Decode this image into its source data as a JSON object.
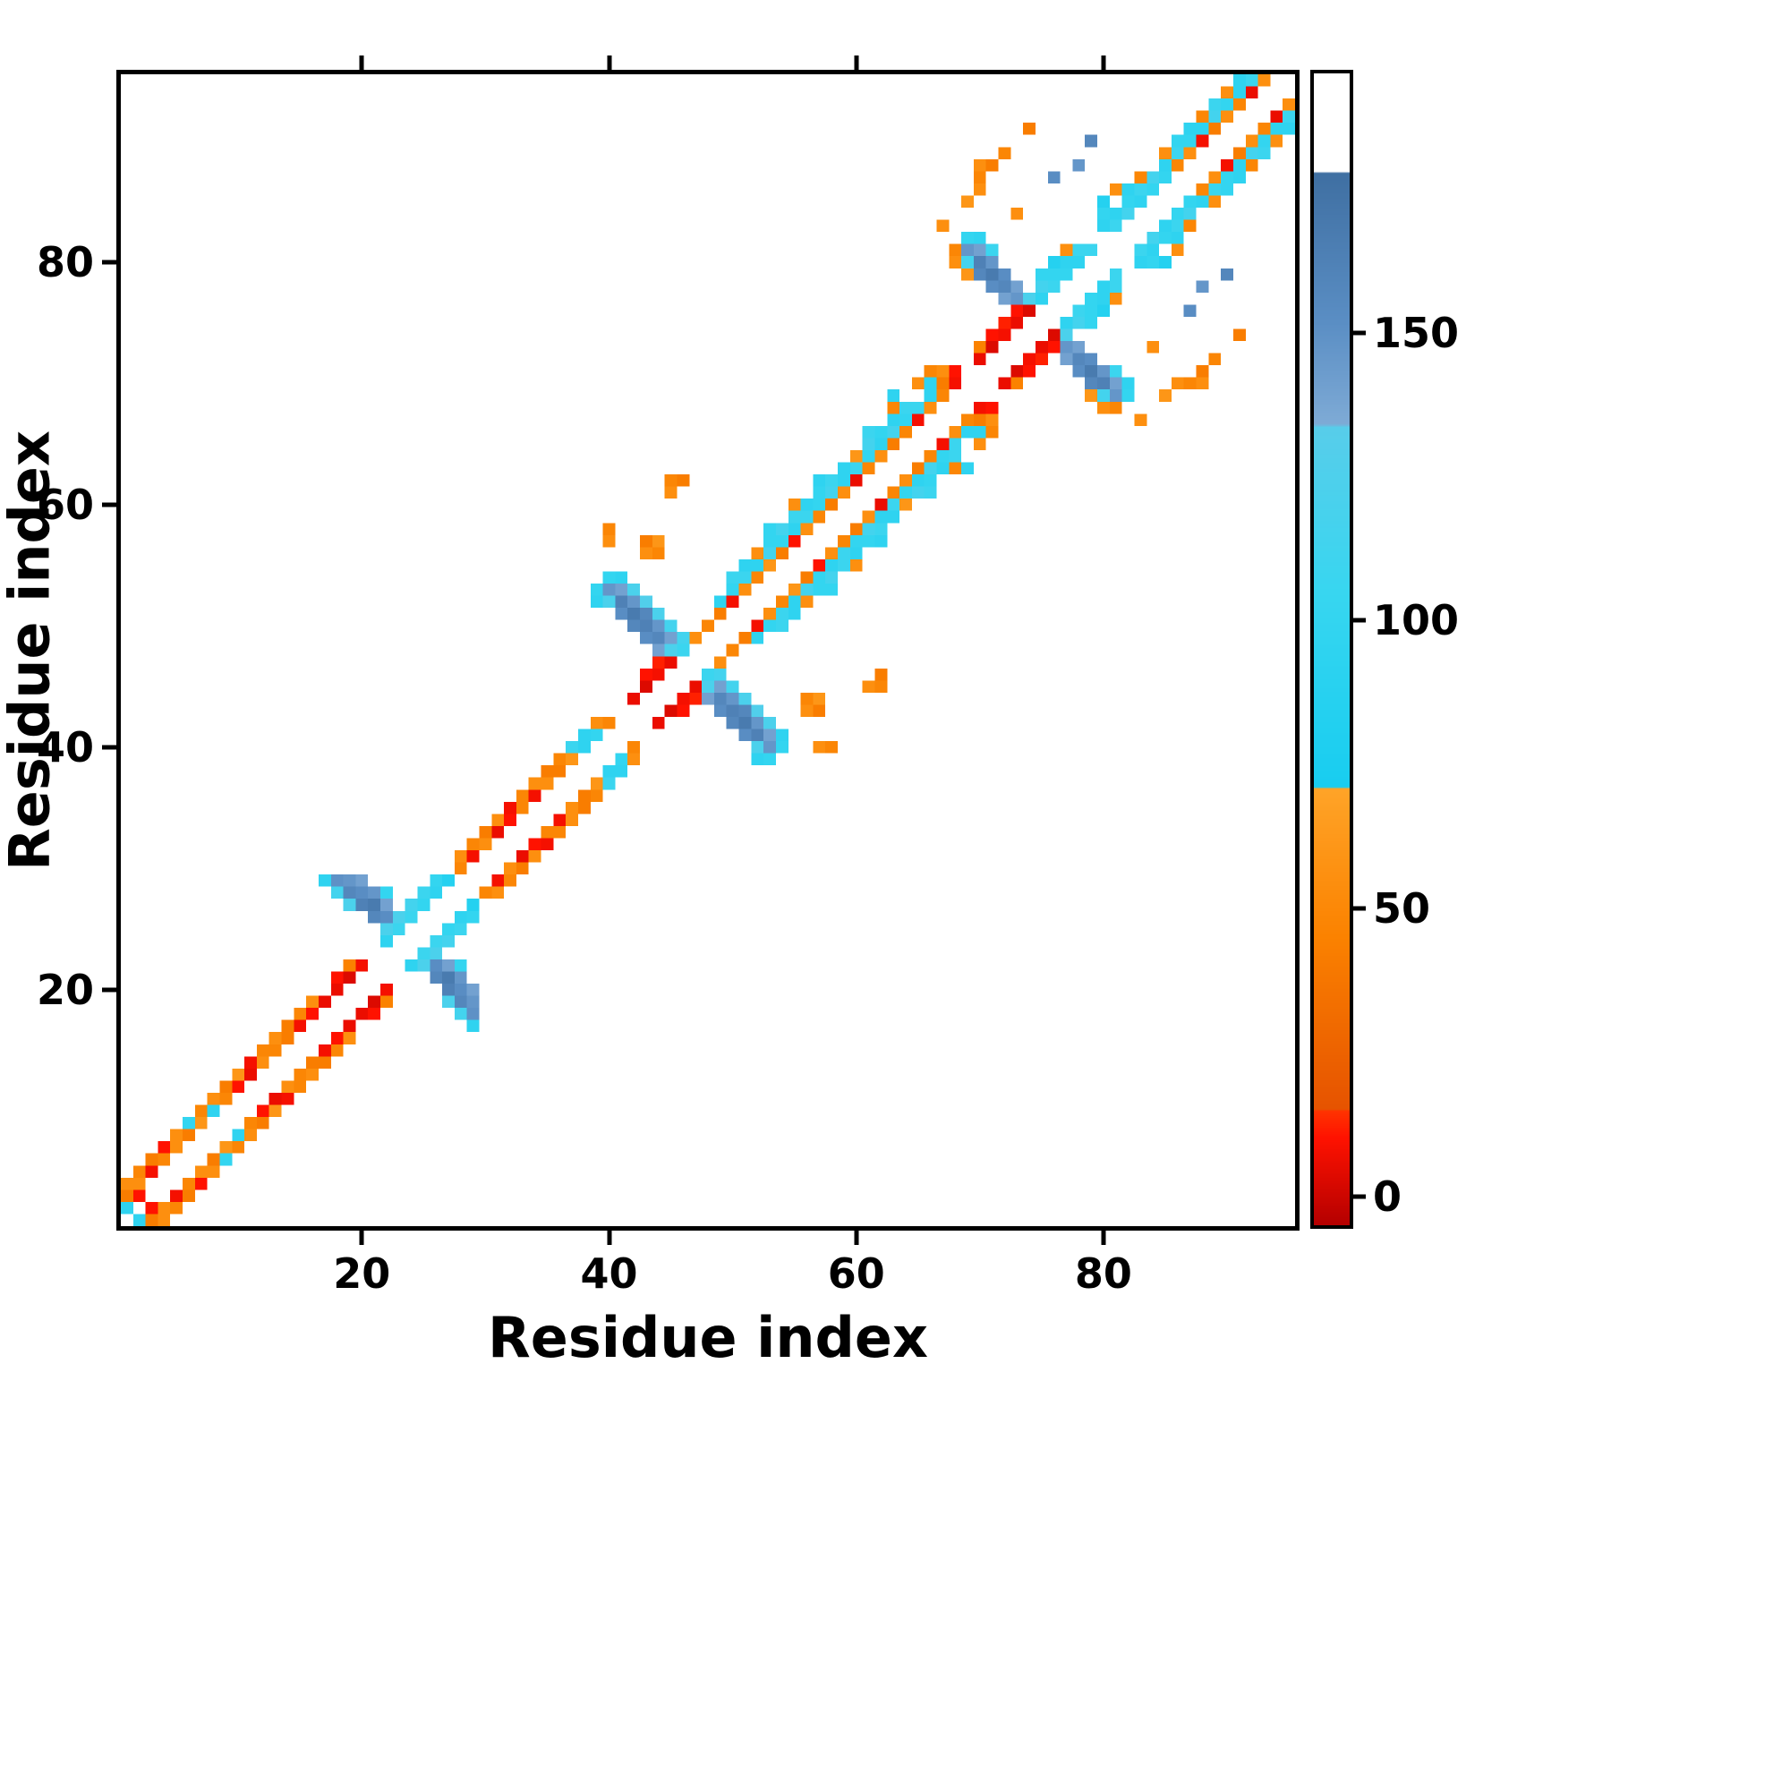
{
  "figure": {
    "background": "#ffffff",
    "axis_color": "#000000"
  },
  "chart_data": {
    "type": "heatmap",
    "title": "",
    "xlabel": "Residue index",
    "ylabel": "Residue index",
    "n_residues": 95,
    "axis_range": [
      0.5,
      95.5
    ],
    "x_ticks": [
      20,
      40,
      60,
      80
    ],
    "y_ticks": [
      20,
      40,
      60,
      80
    ],
    "grid": false,
    "symmetric": true,
    "colorbar": {
      "vmin": -5,
      "vmax": 195,
      "ticks": [
        0,
        50,
        100,
        150
      ]
    },
    "colormap_stops": [
      {
        "v": -5,
        "c": "#b50000"
      },
      {
        "v": 10,
        "c": "#ff1200"
      },
      {
        "v": 14.9,
        "c": "#ff3500"
      },
      {
        "v": 15,
        "c": "#e65300"
      },
      {
        "v": 45,
        "c": "#fb8200"
      },
      {
        "v": 70.9,
        "c": "#ffa428"
      },
      {
        "v": 71,
        "c": "#18cdf0"
      },
      {
        "v": 105,
        "c": "#38d6f0"
      },
      {
        "v": 133.9,
        "c": "#58cdea"
      },
      {
        "v": 134,
        "c": "#7fabd6"
      },
      {
        "v": 152,
        "c": "#5a8ec4"
      },
      {
        "v": 177.9,
        "c": "#3f6fa2"
      },
      {
        "v": 178,
        "c": "#ffffff"
      },
      {
        "v": 195,
        "c": "#ffffff"
      }
    ],
    "cells": [
      [
        1,
        2,
        95
      ],
      [
        2,
        3,
        10
      ],
      [
        1,
        3,
        42
      ],
      [
        2,
        4,
        55
      ],
      [
        3,
        5,
        8
      ],
      [
        4,
        6,
        48
      ],
      [
        5,
        7,
        55
      ],
      [
        6,
        8,
        42
      ],
      [
        7,
        9,
        60
      ],
      [
        8,
        10,
        95
      ],
      [
        9,
        11,
        48
      ],
      [
        10,
        12,
        10
      ],
      [
        11,
        13,
        6
      ],
      [
        12,
        14,
        55
      ],
      [
        13,
        15,
        48
      ],
      [
        14,
        16,
        42
      ],
      [
        15,
        17,
        8
      ],
      [
        16,
        18,
        10
      ],
      [
        17,
        19,
        6
      ],
      [
        1,
        4,
        55
      ],
      [
        2,
        5,
        48
      ],
      [
        3,
        6,
        42
      ],
      [
        4,
        7,
        10
      ],
      [
        5,
        8,
        55
      ],
      [
        6,
        9,
        100
      ],
      [
        7,
        10,
        48
      ],
      [
        8,
        11,
        55
      ],
      [
        9,
        12,
        42
      ],
      [
        10,
        13,
        60
      ],
      [
        11,
        14,
        8
      ],
      [
        12,
        15,
        48
      ],
      [
        13,
        16,
        55
      ],
      [
        14,
        17,
        42
      ],
      [
        15,
        18,
        48
      ],
      [
        16,
        19,
        55
      ],
      [
        18,
        20,
        6
      ],
      [
        18,
        21,
        10
      ],
      [
        19,
        21,
        3
      ],
      [
        19,
        22,
        45
      ],
      [
        20,
        22,
        8
      ],
      [
        17,
        29,
        95
      ],
      [
        18,
        28,
        115
      ],
      [
        18,
        29,
        150
      ],
      [
        19,
        27,
        122
      ],
      [
        19,
        28,
        158
      ],
      [
        19,
        29,
        147
      ],
      [
        20,
        27,
        163
      ],
      [
        20,
        28,
        153
      ],
      [
        20,
        29,
        140
      ],
      [
        21,
        26,
        158
      ],
      [
        21,
        27,
        168
      ],
      [
        21,
        28,
        147
      ],
      [
        22,
        25,
        122
      ],
      [
        22,
        26,
        153
      ],
      [
        22,
        27,
        140
      ],
      [
        22,
        28,
        100
      ],
      [
        23,
        25,
        108
      ],
      [
        23,
        26,
        122
      ],
      [
        22,
        24,
        95
      ],
      [
        24,
        26,
        108
      ],
      [
        25,
        27,
        100
      ],
      [
        26,
        28,
        95
      ],
      [
        24,
        27,
        115
      ],
      [
        25,
        28,
        108
      ],
      [
        26,
        29,
        100
      ],
      [
        27,
        29,
        85
      ],
      [
        28,
        30,
        48
      ],
      [
        29,
        31,
        8
      ],
      [
        30,
        32,
        55
      ],
      [
        31,
        33,
        6
      ],
      [
        32,
        34,
        10
      ],
      [
        33,
        35,
        48
      ],
      [
        34,
        36,
        8
      ],
      [
        35,
        37,
        55
      ],
      [
        36,
        38,
        42
      ],
      [
        37,
        39,
        60
      ],
      [
        38,
        40,
        95
      ],
      [
        39,
        41,
        100
      ],
      [
        40,
        42,
        48
      ],
      [
        28,
        31,
        55
      ],
      [
        29,
        32,
        48
      ],
      [
        30,
        33,
        42
      ],
      [
        31,
        34,
        55
      ],
      [
        32,
        35,
        8
      ],
      [
        33,
        36,
        48
      ],
      [
        34,
        37,
        55
      ],
      [
        35,
        38,
        42
      ],
      [
        36,
        39,
        48
      ],
      [
        37,
        40,
        108
      ],
      [
        38,
        41,
        95
      ],
      [
        39,
        42,
        55
      ],
      [
        42,
        44,
        6
      ],
      [
        43,
        45,
        3
      ],
      [
        44,
        46,
        8
      ],
      [
        43,
        46,
        10
      ],
      [
        45,
        47,
        6
      ],
      [
        44,
        47,
        12
      ],
      [
        39,
        52,
        95
      ],
      [
        39,
        53,
        100
      ],
      [
        40,
        52,
        122
      ],
      [
        40,
        53,
        147
      ],
      [
        40,
        54,
        100
      ],
      [
        41,
        51,
        153
      ],
      [
        41,
        52,
        163
      ],
      [
        41,
        53,
        140
      ],
      [
        41,
        54,
        95
      ],
      [
        42,
        50,
        158
      ],
      [
        42,
        51,
        168
      ],
      [
        42,
        52,
        147
      ],
      [
        42,
        53,
        122
      ],
      [
        43,
        49,
        153
      ],
      [
        43,
        50,
        163
      ],
      [
        43,
        51,
        158
      ],
      [
        43,
        52,
        128
      ],
      [
        44,
        48,
        140
      ],
      [
        44,
        49,
        158
      ],
      [
        44,
        50,
        147
      ],
      [
        44,
        51,
        122
      ],
      [
        45,
        48,
        122
      ],
      [
        45,
        49,
        140
      ],
      [
        45,
        50,
        115
      ],
      [
        46,
        48,
        108
      ],
      [
        46,
        49,
        115
      ],
      [
        40,
        57,
        55
      ],
      [
        40,
        58,
        48
      ],
      [
        43,
        56,
        55
      ],
      [
        44,
        56,
        48
      ],
      [
        44,
        57,
        60
      ],
      [
        43,
        57,
        42
      ],
      [
        45,
        61,
        55
      ],
      [
        45,
        62,
        48
      ],
      [
        46,
        62,
        42
      ],
      [
        47,
        49,
        55
      ],
      [
        48,
        50,
        48
      ],
      [
        49,
        51,
        42
      ],
      [
        50,
        52,
        8
      ],
      [
        51,
        53,
        55
      ],
      [
        52,
        54,
        48
      ],
      [
        53,
        55,
        60
      ],
      [
        54,
        56,
        42
      ],
      [
        55,
        57,
        10
      ],
      [
        56,
        58,
        55
      ],
      [
        57,
        59,
        48
      ],
      [
        58,
        60,
        42
      ],
      [
        59,
        61,
        55
      ],
      [
        60,
        62,
        6
      ],
      [
        61,
        63,
        48
      ],
      [
        62,
        64,
        55
      ],
      [
        63,
        65,
        42
      ],
      [
        64,
        66,
        48
      ],
      [
        65,
        67,
        8
      ],
      [
        66,
        68,
        55
      ],
      [
        67,
        69,
        48
      ],
      [
        49,
        52,
        95
      ],
      [
        50,
        53,
        100
      ],
      [
        51,
        54,
        108
      ],
      [
        52,
        55,
        95
      ],
      [
        53,
        56,
        115
      ],
      [
        54,
        57,
        100
      ],
      [
        55,
        58,
        95
      ],
      [
        56,
        59,
        108
      ],
      [
        57,
        60,
        100
      ],
      [
        58,
        61,
        115
      ],
      [
        59,
        62,
        95
      ],
      [
        60,
        63,
        108
      ],
      [
        61,
        64,
        100
      ],
      [
        62,
        65,
        95
      ],
      [
        63,
        66,
        115
      ],
      [
        64,
        67,
        100
      ],
      [
        65,
        68,
        108
      ],
      [
        66,
        69,
        95
      ],
      [
        50,
        54,
        108
      ],
      [
        51,
        55,
        95
      ],
      [
        52,
        56,
        55
      ],
      [
        53,
        57,
        100
      ],
      [
        54,
        58,
        115
      ],
      [
        55,
        59,
        108
      ],
      [
        56,
        60,
        95
      ],
      [
        57,
        61,
        100
      ],
      [
        58,
        62,
        108
      ],
      [
        59,
        63,
        95
      ],
      [
        60,
        64,
        60
      ],
      [
        61,
        65,
        115
      ],
      [
        62,
        66,
        100
      ],
      [
        63,
        67,
        95
      ],
      [
        64,
        68,
        108
      ],
      [
        53,
        58,
        100
      ],
      [
        57,
        62,
        95
      ],
      [
        61,
        66,
        108
      ],
      [
        63,
        69,
        95
      ],
      [
        55,
        60,
        55
      ],
      [
        63,
        68,
        48
      ],
      [
        65,
        70,
        55
      ],
      [
        66,
        70,
        95
      ],
      [
        66,
        71,
        48
      ],
      [
        67,
        70,
        42
      ],
      [
        67,
        71,
        55
      ],
      [
        68,
        70,
        8
      ],
      [
        68,
        71,
        10
      ],
      [
        70,
        72,
        6
      ],
      [
        71,
        73,
        3
      ],
      [
        72,
        74,
        8
      ],
      [
        73,
        75,
        6
      ],
      [
        71,
        74,
        10
      ],
      [
        72,
        75,
        12
      ],
      [
        70,
        73,
        45
      ],
      [
        74,
        76,
        3
      ],
      [
        73,
        76,
        10
      ],
      [
        69,
        80,
        115
      ],
      [
        69,
        81,
        147
      ],
      [
        69,
        82,
        100
      ],
      [
        70,
        79,
        158
      ],
      [
        70,
        80,
        163
      ],
      [
        70,
        81,
        140
      ],
      [
        70,
        82,
        95
      ],
      [
        71,
        78,
        153
      ],
      [
        71,
        79,
        168
      ],
      [
        71,
        80,
        147
      ],
      [
        71,
        81,
        108
      ],
      [
        72,
        77,
        140
      ],
      [
        72,
        78,
        158
      ],
      [
        72,
        79,
        153
      ],
      [
        73,
        77,
        147
      ],
      [
        73,
        78,
        140
      ],
      [
        74,
        77,
        122
      ],
      [
        68,
        80,
        55
      ],
      [
        68,
        81,
        48
      ],
      [
        69,
        79,
        60
      ],
      [
        75,
        77,
        95
      ],
      [
        75,
        78,
        115
      ],
      [
        75,
        79,
        100
      ],
      [
        76,
        78,
        108
      ],
      [
        76,
        79,
        100
      ],
      [
        76,
        80,
        85
      ],
      [
        77,
        79,
        100
      ],
      [
        77,
        80,
        95
      ],
      [
        78,
        80,
        95
      ],
      [
        78,
        81,
        108
      ],
      [
        79,
        81,
        108
      ],
      [
        77,
        81,
        55
      ],
      [
        67,
        83,
        55
      ],
      [
        69,
        85,
        60
      ],
      [
        70,
        86,
        55
      ],
      [
        70,
        87,
        48
      ],
      [
        70,
        88,
        55
      ],
      [
        71,
        88,
        42
      ],
      [
        72,
        89,
        48
      ],
      [
        73,
        84,
        55
      ],
      [
        74,
        91,
        42
      ],
      [
        76,
        87,
        153
      ],
      [
        78,
        88,
        147
      ],
      [
        79,
        90,
        158
      ],
      [
        80,
        83,
        95
      ],
      [
        80,
        84,
        100
      ],
      [
        80,
        85,
        85
      ],
      [
        81,
        83,
        108
      ],
      [
        81,
        84,
        95
      ],
      [
        81,
        86,
        55
      ],
      [
        82,
        84,
        115
      ],
      [
        82,
        85,
        100
      ],
      [
        82,
        86,
        95
      ],
      [
        83,
        85,
        95
      ],
      [
        83,
        86,
        108
      ],
      [
        83,
        87,
        48
      ],
      [
        84,
        86,
        100
      ],
      [
        84,
        87,
        115
      ],
      [
        85,
        87,
        100
      ],
      [
        86,
        88,
        48
      ],
      [
        87,
        89,
        55
      ],
      [
        88,
        90,
        8
      ],
      [
        89,
        91,
        42
      ],
      [
        90,
        92,
        55
      ],
      [
        91,
        93,
        48
      ],
      [
        92,
        94,
        6
      ],
      [
        93,
        95,
        55
      ],
      [
        85,
        88,
        95
      ],
      [
        86,
        89,
        108
      ],
      [
        87,
        90,
        100
      ],
      [
        88,
        91,
        95
      ],
      [
        89,
        92,
        115
      ],
      [
        90,
        93,
        100
      ],
      [
        91,
        94,
        95
      ],
      [
        92,
        95,
        108
      ],
      [
        85,
        89,
        55
      ],
      [
        86,
        90,
        100
      ],
      [
        87,
        91,
        95
      ],
      [
        88,
        92,
        48
      ],
      [
        89,
        93,
        108
      ],
      [
        90,
        94,
        55
      ],
      [
        91,
        95,
        95
      ]
    ]
  }
}
